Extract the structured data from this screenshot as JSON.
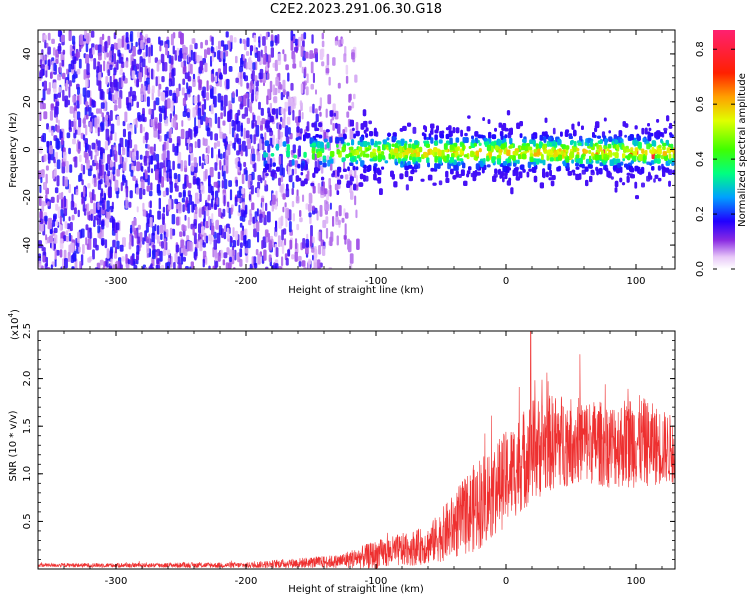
{
  "title": "C2E2.2023.291.06.30.G18",
  "chart_data": [
    {
      "type": "heatmap",
      "xlabel": "Height of straight line (km)",
      "ylabel": "Frequency (Hz)",
      "xlim": [
        -360,
        130
      ],
      "ylim": [
        -50,
        50
      ],
      "xticks": [
        -300,
        -200,
        -100,
        0,
        100
      ],
      "yticks": [
        -40,
        -20,
        0,
        20,
        40
      ],
      "colorbar": {
        "label": "Normalized spectral amplitude",
        "range": [
          0,
          0.87
        ],
        "ticks": [
          0.0,
          0.2,
          0.4,
          0.6,
          0.8
        ]
      },
      "grid": false,
      "description_of_structure": {
        "noise_region_x": [
          -360,
          -130
        ],
        "signal_band_start_x": -130,
        "signal_band_center_hz": 0,
        "signal_band_halfwidth_hz": 6
      }
    },
    {
      "type": "line",
      "color": "#ee3030",
      "xlabel": "Height of straight line (km)",
      "ylabel": "SNR (10 * v/v)",
      "exponent_label": "(x10",
      "exponent_value": "4",
      "exponent_close": ")",
      "xlim": [
        -360,
        130
      ],
      "ylim": [
        0,
        25000
      ],
      "xticks": [
        -300,
        -200,
        -100,
        0,
        100
      ],
      "yticks": [
        0.5,
        1.0,
        1.5,
        2.0,
        2.5
      ],
      "grid": false,
      "envelope": {
        "x": [
          -360,
          -200,
          -130,
          -100,
          -60,
          -40,
          -20,
          0,
          20,
          40,
          60,
          80,
          100,
          130
        ],
        "y_mean": [
          400,
          400,
          800,
          1500,
          2500,
          4500,
          7000,
          9500,
          12500,
          13500,
          13500,
          13000,
          13500,
          12500
        ],
        "y_spread": [
          200,
          300,
          700,
          1500,
          2000,
          3500,
          5000,
          5000,
          5500,
          5000,
          4500,
          4500,
          5000,
          3500
        ]
      }
    }
  ]
}
